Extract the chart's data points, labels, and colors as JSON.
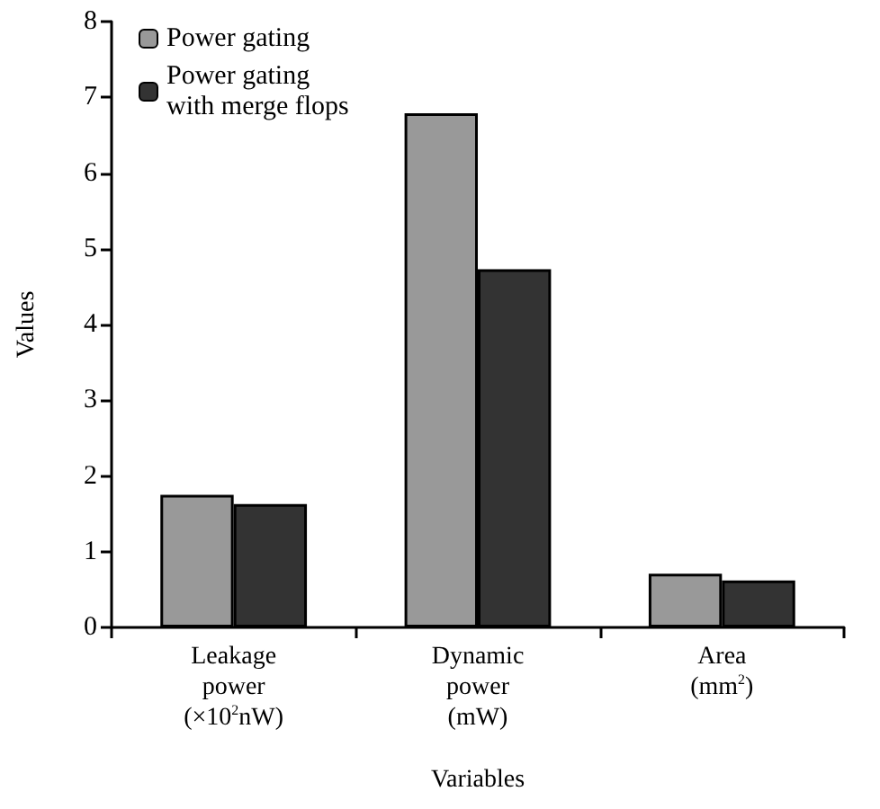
{
  "chart_data": {
    "type": "bar",
    "xlabel": "Variables",
    "ylabel": "Values",
    "categories": [
      "Leakage\npower\n(×10$^{2}$nW)",
      "Dynamic\npower\n(mW)",
      "Area\n(mm$^{2}$)"
    ],
    "series": [
      {
        "name": "Power gating",
        "color": "#999999",
        "values": [
          1.75,
          6.79,
          0.71
        ]
      },
      {
        "name": "Power gating\nwith merge flops",
        "color": "#333333",
        "values": [
          1.63,
          4.73,
          0.62
        ]
      }
    ],
    "ylim": [
      0,
      8
    ],
    "yticks": [
      0,
      1,
      2,
      3,
      4,
      5,
      6,
      7,
      8
    ],
    "grid": false,
    "legend": "top left"
  }
}
